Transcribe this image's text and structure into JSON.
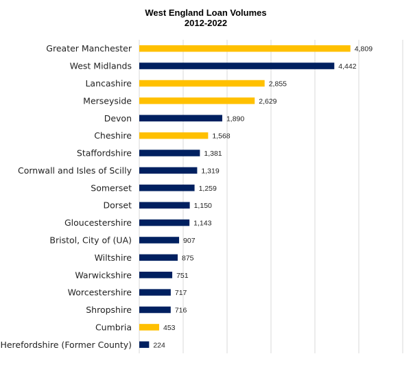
{
  "chart_data": {
    "type": "bar",
    "orientation": "horizontal",
    "title": "West England Loan Volumes",
    "subtitle": "2012-2022",
    "xlim": [
      0,
      6000
    ],
    "grid": true,
    "categories": [
      "Greater Manchester",
      "West Midlands",
      "Lancashire",
      "Merseyside",
      "Devon",
      "Cheshire",
      "Staffordshire",
      "Cornwall and Isles of Scilly",
      "Somerset",
      "Dorset",
      "Gloucestershire",
      "Bristol, City of (UA)",
      "Wiltshire",
      "Warwickshire",
      "Worcestershire",
      "Shropshire",
      "Cumbria",
      "Herefordshire (Former County)"
    ],
    "values": [
      4809,
      4442,
      2855,
      2629,
      1890,
      1568,
      1381,
      1319,
      1259,
      1150,
      1143,
      907,
      875,
      751,
      717,
      716,
      453,
      224
    ],
    "value_labels": [
      "4,809",
      "4,442",
      "2,855",
      "2,629",
      "1,890",
      "1,568",
      "1,381",
      "1,319",
      "1,259",
      "1,150",
      "1,143",
      "907",
      "875",
      "751",
      "717",
      "716",
      "453",
      "224"
    ],
    "bar_colors": [
      "#FFC000",
      "#002060",
      "#FFC000",
      "#FFC000",
      "#002060",
      "#FFC000",
      "#002060",
      "#002060",
      "#002060",
      "#002060",
      "#002060",
      "#002060",
      "#002060",
      "#002060",
      "#002060",
      "#002060",
      "#FFC000",
      "#002060"
    ]
  }
}
